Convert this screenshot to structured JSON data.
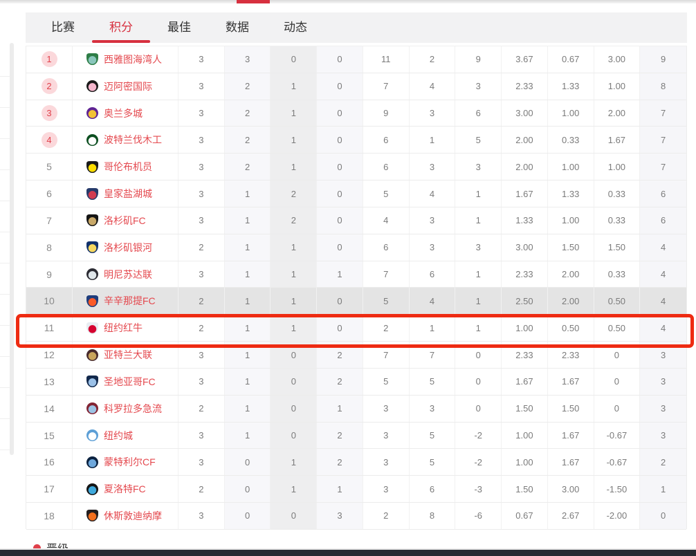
{
  "tabs": [
    {
      "label": "比赛",
      "active": false
    },
    {
      "label": "积分",
      "active": true
    },
    {
      "label": "最佳",
      "active": false
    },
    {
      "label": "数据",
      "active": false
    },
    {
      "label": "动态",
      "active": false
    }
  ],
  "table": {
    "rows": [
      {
        "rank": "1",
        "badge": true,
        "team": "西雅图海湾人",
        "logo": {
          "shape": "shield",
          "bg": "#2e7d46",
          "fg": "#8ac6bc"
        },
        "values": [
          "3",
          "3",
          "0",
          "0",
          "11",
          "2",
          "9",
          "3.67",
          "0.67",
          "3.00",
          "9"
        ],
        "highlighted": false,
        "selected": false
      },
      {
        "rank": "2",
        "badge": true,
        "team": "迈阿密国际",
        "logo": {
          "shape": "circle",
          "bg": "#1a1a1a",
          "fg": "#f5b6cd"
        },
        "values": [
          "3",
          "2",
          "1",
          "0",
          "7",
          "4",
          "3",
          "2.33",
          "1.33",
          "1.00",
          "8"
        ],
        "highlighted": false,
        "selected": false
      },
      {
        "rank": "3",
        "badge": true,
        "team": "奥兰多城",
        "logo": {
          "shape": "circle",
          "bg": "#5f2493",
          "fg": "#f2c234"
        },
        "values": [
          "3",
          "2",
          "1",
          "0",
          "9",
          "3",
          "6",
          "3.00",
          "1.00",
          "2.00",
          "7"
        ],
        "highlighted": false,
        "selected": false
      },
      {
        "rank": "4",
        "badge": true,
        "team": "波特兰伐木工",
        "logo": {
          "shape": "circle",
          "bg": "#0d4f21",
          "fg": "#ffffff"
        },
        "values": [
          "3",
          "2",
          "1",
          "0",
          "6",
          "1",
          "5",
          "2.00",
          "0.33",
          "1.67",
          "7"
        ],
        "highlighted": false,
        "selected": false
      },
      {
        "rank": "5",
        "badge": false,
        "team": "哥伦布机员",
        "logo": {
          "shape": "shield",
          "bg": "#1b1b1b",
          "fg": "#fede00"
        },
        "values": [
          "3",
          "2",
          "1",
          "0",
          "6",
          "3",
          "3",
          "2.00",
          "1.00",
          "1.00",
          "7"
        ],
        "highlighted": false,
        "selected": false
      },
      {
        "rank": "6",
        "badge": false,
        "team": "皇家盐湖城",
        "logo": {
          "shape": "shield",
          "bg": "#263a6a",
          "fg": "#d23c50"
        },
        "values": [
          "3",
          "1",
          "2",
          "0",
          "5",
          "4",
          "1",
          "1.67",
          "1.33",
          "0.33",
          "6"
        ],
        "highlighted": false,
        "selected": false
      },
      {
        "rank": "7",
        "badge": false,
        "team": "洛杉矶FC",
        "logo": {
          "shape": "shield",
          "bg": "#141414",
          "fg": "#c8a868"
        },
        "values": [
          "3",
          "1",
          "2",
          "0",
          "4",
          "3",
          "1",
          "1.33",
          "1.00",
          "0.33",
          "6"
        ],
        "highlighted": false,
        "selected": false
      },
      {
        "rank": "8",
        "badge": false,
        "team": "洛杉矶银河",
        "logo": {
          "shape": "shield",
          "bg": "#12316b",
          "fg": "#f5d75f"
        },
        "values": [
          "2",
          "1",
          "1",
          "0",
          "6",
          "3",
          "3",
          "3.00",
          "1.50",
          "1.50",
          "4"
        ],
        "highlighted": false,
        "selected": false
      },
      {
        "rank": "9",
        "badge": false,
        "team": "明尼苏达联",
        "logo": {
          "shape": "circle",
          "bg": "#2b2b33",
          "fg": "#dfe6ea"
        },
        "values": [
          "3",
          "1",
          "1",
          "1",
          "7",
          "6",
          "1",
          "2.33",
          "2.00",
          "0.33",
          "4"
        ],
        "highlighted": false,
        "selected": false
      },
      {
        "rank": "10",
        "badge": false,
        "team": "辛辛那提FC",
        "logo": {
          "shape": "shield",
          "bg": "#1f3d7c",
          "fg": "#fb5a28"
        },
        "values": [
          "2",
          "1",
          "1",
          "0",
          "5",
          "4",
          "1",
          "2.50",
          "2.00",
          "0.50",
          "4"
        ],
        "highlighted": true,
        "selected": false
      },
      {
        "rank": "11",
        "badge": false,
        "team": "纽约红牛",
        "logo": {
          "shape": "shield",
          "bg": "#e8edf2",
          "fg": "#d50330"
        },
        "values": [
          "2",
          "1",
          "1",
          "0",
          "2",
          "1",
          "1",
          "1.00",
          "0.50",
          "0.50",
          "4"
        ],
        "highlighted": false,
        "selected": true
      },
      {
        "rank": "12",
        "badge": false,
        "team": "亚特兰大联",
        "logo": {
          "shape": "circle",
          "bg": "#472a2d",
          "fg": "#c9a55c"
        },
        "values": [
          "3",
          "1",
          "0",
          "2",
          "7",
          "7",
          "0",
          "2.33",
          "2.33",
          "0",
          "3"
        ],
        "highlighted": false,
        "selected": false
      },
      {
        "rank": "13",
        "badge": false,
        "team": "圣地亚哥FC",
        "logo": {
          "shape": "shield",
          "bg": "#12284b",
          "fg": "#9bc1e8"
        },
        "values": [
          "3",
          "1",
          "0",
          "2",
          "5",
          "5",
          "0",
          "1.67",
          "1.67",
          "0",
          "3"
        ],
        "highlighted": false,
        "selected": false
      },
      {
        "rank": "14",
        "badge": false,
        "team": "科罗拉多急流",
        "logo": {
          "shape": "circle",
          "bg": "#822433",
          "fg": "#9cc3e4"
        },
        "values": [
          "2",
          "1",
          "0",
          "1",
          "3",
          "3",
          "0",
          "1.50",
          "1.50",
          "0",
          "3"
        ],
        "highlighted": false,
        "selected": false
      },
      {
        "rank": "15",
        "badge": false,
        "team": "纽约城",
        "logo": {
          "shape": "circle",
          "bg": "#5d9fd6",
          "fg": "#ffffff"
        },
        "values": [
          "3",
          "1",
          "0",
          "2",
          "3",
          "5",
          "-2",
          "1.00",
          "1.67",
          "-0.67",
          "3"
        ],
        "highlighted": false,
        "selected": false
      },
      {
        "rank": "16",
        "badge": false,
        "team": "蒙特利尔CF",
        "logo": {
          "shape": "circle",
          "bg": "#0b2240",
          "fg": "#6ea8dc"
        },
        "values": [
          "3",
          "0",
          "1",
          "2",
          "3",
          "5",
          "-2",
          "1.00",
          "1.67",
          "-0.67",
          "2"
        ],
        "highlighted": false,
        "selected": false
      },
      {
        "rank": "17",
        "badge": false,
        "team": "夏洛特FC",
        "logo": {
          "shape": "circle",
          "bg": "#151515",
          "fg": "#3fa9dc"
        },
        "values": [
          "2",
          "0",
          "1",
          "1",
          "3",
          "6",
          "-3",
          "1.50",
          "3.00",
          "-1.50",
          "1"
        ],
        "highlighted": false,
        "selected": false
      },
      {
        "rank": "18",
        "badge": false,
        "team": "休斯敦迪纳摩",
        "logo": {
          "shape": "shield",
          "bg": "#241f20",
          "fg": "#f4701e"
        },
        "values": [
          "3",
          "0",
          "0",
          "3",
          "2",
          "8",
          "-6",
          "0.67",
          "2.67",
          "-2.00",
          "0"
        ],
        "highlighted": false,
        "selected": false
      }
    ]
  },
  "legend": {
    "label": "晋级",
    "dot_color": "#df404b"
  },
  "colors": {
    "accent_red": "#d7303f",
    "selection_red": "#ee2b12",
    "badge_bg": "#fbd8db",
    "badge_text": "#e0404b",
    "team_text": "#e4484e",
    "number_text": "#7b7b7b",
    "highlight_row_bg": "#e4e4e4",
    "tabbar_bg": "#f2f2f3",
    "bottom_bar": "#262b33"
  }
}
